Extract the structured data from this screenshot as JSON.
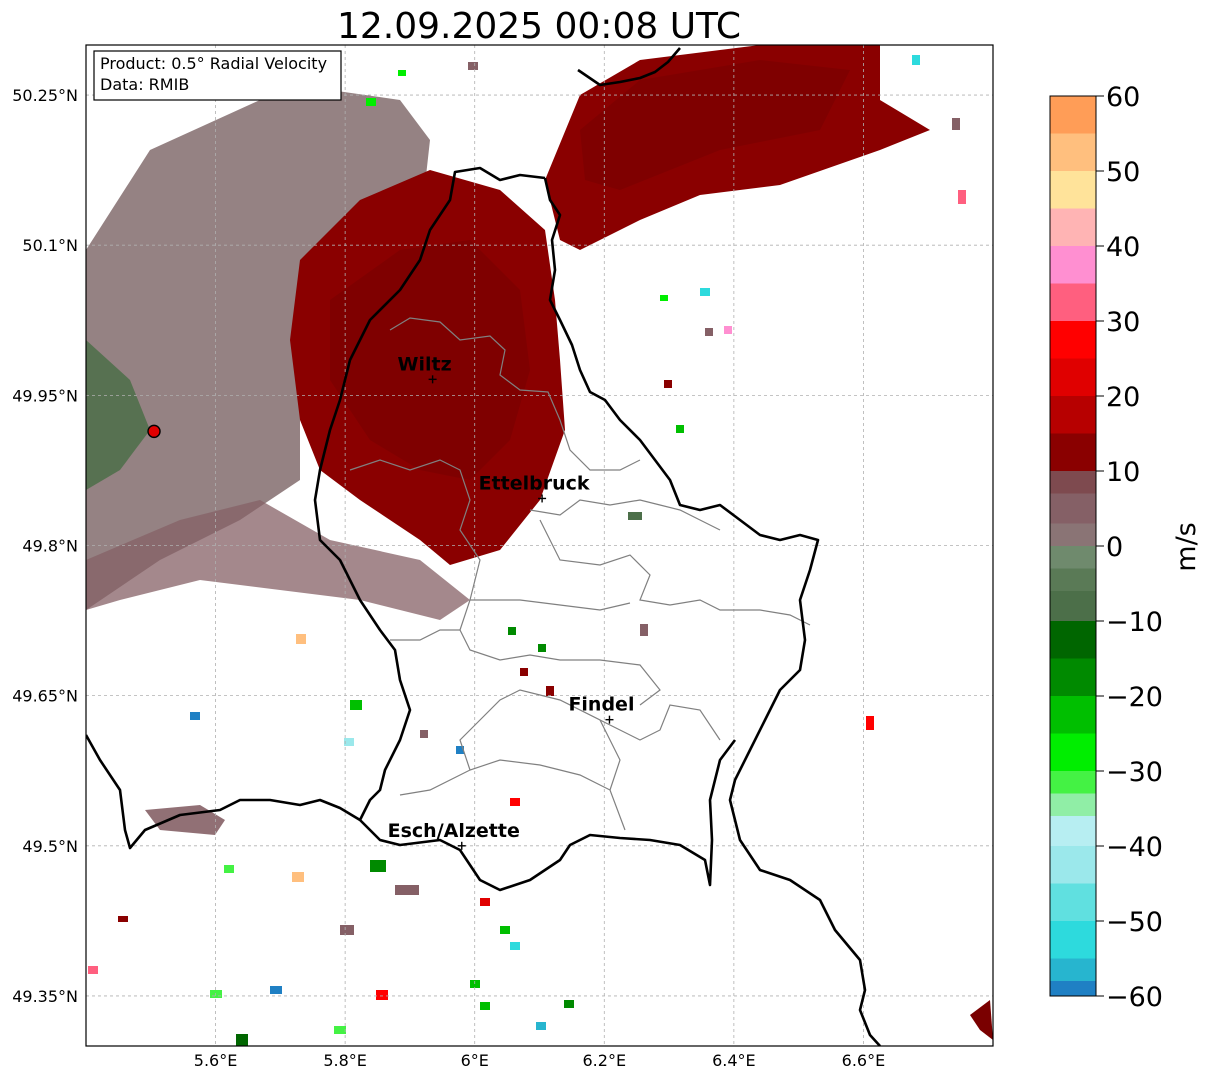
{
  "title": "12.09.2025 00:08 UTC",
  "info_box": {
    "product": "Product: 0.5° Radial Velocity",
    "data": "Data: RMIB"
  },
  "map": {
    "lon_range": [
      5.4,
      6.8
    ],
    "lat_range": [
      49.3,
      50.3
    ],
    "x_ticks": [
      {
        "value": 5.6,
        "label": "5.6°E"
      },
      {
        "value": 5.8,
        "label": "5.8°E"
      },
      {
        "value": 6.0,
        "label": "6°E"
      },
      {
        "value": 6.2,
        "label": "6.2°E"
      },
      {
        "value": 6.4,
        "label": "6.4°E"
      },
      {
        "value": 6.6,
        "label": "6.6°E"
      }
    ],
    "y_ticks": [
      {
        "value": 50.25,
        "label": "50.25°N"
      },
      {
        "value": 50.1,
        "label": "50.1°N"
      },
      {
        "value": 49.95,
        "label": "49.95°N"
      },
      {
        "value": 49.8,
        "label": "49.8°N"
      },
      {
        "value": 49.65,
        "label": "49.65°N"
      },
      {
        "value": 49.5,
        "label": "49.5°N"
      },
      {
        "value": 49.35,
        "label": "49.35°N"
      }
    ],
    "radar": {
      "lon": 5.505,
      "lat": 49.914
    },
    "cities": [
      {
        "name": "Wiltz",
        "lon": 5.935,
        "lat": 49.966
      },
      {
        "name": "Ettelbruck",
        "lon": 6.104,
        "lat": 49.847
      },
      {
        "name": "Findel",
        "lon": 6.208,
        "lat": 49.626
      },
      {
        "name": "Esch/Alzette",
        "lon": 5.98,
        "lat": 49.5
      }
    ]
  },
  "colorbar": {
    "label": "m/s",
    "min": -60,
    "max": 60,
    "ticks": [
      {
        "value": 60,
        "label": "60"
      },
      {
        "value": 50,
        "label": "50"
      },
      {
        "value": 40,
        "label": "40"
      },
      {
        "value": 30,
        "label": "30"
      },
      {
        "value": 20,
        "label": "20"
      },
      {
        "value": 10,
        "label": "10"
      },
      {
        "value": 0,
        "label": "0"
      },
      {
        "value": -10,
        "label": "−10"
      },
      {
        "value": -20,
        "label": "−20"
      },
      {
        "value": -30,
        "label": "−30"
      },
      {
        "value": -40,
        "label": "−40"
      },
      {
        "value": -50,
        "label": "−50"
      },
      {
        "value": -60,
        "label": "−60"
      }
    ],
    "bands": [
      {
        "from": 55,
        "to": 60,
        "color": "#ff9d57"
      },
      {
        "from": 50,
        "to": 55,
        "color": "#ffbf7e"
      },
      {
        "from": 45,
        "to": 50,
        "color": "#ffe39a"
      },
      {
        "from": 40,
        "to": 45,
        "color": "#ffb4b4"
      },
      {
        "from": 35,
        "to": 40,
        "color": "#ff8fd1"
      },
      {
        "from": 30,
        "to": 35,
        "color": "#ff5f7f"
      },
      {
        "from": 25,
        "to": 30,
        "color": "#ff0000"
      },
      {
        "from": 20,
        "to": 25,
        "color": "#e00000"
      },
      {
        "from": 15,
        "to": 20,
        "color": "#b70000"
      },
      {
        "from": 10,
        "to": 15,
        "color": "#8a0000"
      },
      {
        "from": 7,
        "to": 10,
        "color": "#7e4a4f"
      },
      {
        "from": 3,
        "to": 7,
        "color": "#856066"
      },
      {
        "from": 0,
        "to": 3,
        "color": "#8a7475"
      },
      {
        "from": -3,
        "to": 0,
        "color": "#6f8a6d"
      },
      {
        "from": -6,
        "to": -3,
        "color": "#5a7a56"
      },
      {
        "from": -10,
        "to": -6,
        "color": "#4c6f49"
      },
      {
        "from": -15,
        "to": -10,
        "color": "#006600"
      },
      {
        "from": -20,
        "to": -15,
        "color": "#008a00"
      },
      {
        "from": -25,
        "to": -20,
        "color": "#00bf00"
      },
      {
        "from": -30,
        "to": -25,
        "color": "#00ee00"
      },
      {
        "from": -33,
        "to": -30,
        "color": "#44f244"
      },
      {
        "from": -36,
        "to": -33,
        "color": "#90eea6"
      },
      {
        "from": -40,
        "to": -36,
        "color": "#b7eef2"
      },
      {
        "from": -45,
        "to": -40,
        "color": "#9be8eb"
      },
      {
        "from": -50,
        "to": -45,
        "color": "#60e0e0"
      },
      {
        "from": -55,
        "to": -50,
        "color": "#2ddadd"
      },
      {
        "from": -58,
        "to": -55,
        "color": "#27b5cf"
      },
      {
        "from": -60,
        "to": -58,
        "color": "#1f80c4"
      }
    ]
  }
}
